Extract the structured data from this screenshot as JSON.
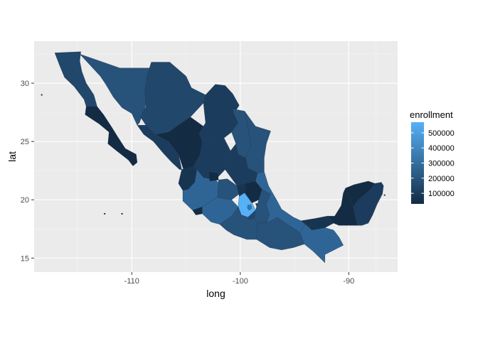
{
  "chart_data": {
    "type": "choropleth",
    "xlabel": "long",
    "ylabel": "lat",
    "xlim": [
      -119,
      -85.5
    ],
    "ylim": [
      13.8,
      33.6
    ],
    "x_ticks": [
      -110,
      -100,
      -90
    ],
    "x_tick_labels": [
      "-110",
      "-100",
      "-90"
    ],
    "y_ticks": [
      15,
      20,
      25,
      30
    ],
    "y_tick_labels": [
      "15",
      "20",
      "25",
      "30"
    ],
    "grid": true,
    "legend": {
      "title": "enrollment",
      "placement": "right",
      "range": [
        30000,
        570000
      ],
      "breaks": [
        100000,
        200000,
        300000,
        400000,
        500000
      ],
      "labels": [
        "100000",
        "200000",
        "300000",
        "400000",
        "500000"
      ],
      "low_color": "#132B43",
      "high_color": "#56B1F7"
    }
  },
  "colors": {
    "panel_background": "#EBEBEB",
    "grid_major": "#FFFFFF",
    "low": "#132B43",
    "high": "#56B1F7"
  }
}
